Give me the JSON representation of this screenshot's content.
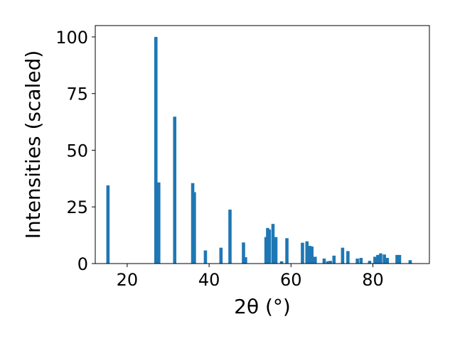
{
  "chart_data": {
    "type": "bar",
    "xlabel": "2θ (°)",
    "ylabel": "Intensities (scaled)",
    "xlim": [
      12.2,
      93.8
    ],
    "ylim": [
      0,
      105
    ],
    "xticks": [
      20,
      40,
      60,
      80
    ],
    "yticks": [
      0,
      25,
      50,
      75,
      100
    ],
    "bar_color": "#1f77b4",
    "grid": false,
    "legend": "none",
    "peaks": [
      {
        "x": 15.3,
        "y": 34.5
      },
      {
        "x": 27.0,
        "y": 100.0
      },
      {
        "x": 27.7,
        "y": 35.8
      },
      {
        "x": 31.6,
        "y": 64.8
      },
      {
        "x": 36.0,
        "y": 35.5
      },
      {
        "x": 36.4,
        "y": 31.5
      },
      {
        "x": 39.1,
        "y": 5.8
      },
      {
        "x": 42.9,
        "y": 7.0
      },
      {
        "x": 45.1,
        "y": 23.8
      },
      {
        "x": 48.4,
        "y": 9.3
      },
      {
        "x": 48.9,
        "y": 2.8
      },
      {
        "x": 53.9,
        "y": 11.7
      },
      {
        "x": 54.3,
        "y": 15.7
      },
      {
        "x": 54.7,
        "y": 15.0
      },
      {
        "x": 55.6,
        "y": 17.5
      },
      {
        "x": 56.3,
        "y": 11.7
      },
      {
        "x": 57.7,
        "y": 1.0
      },
      {
        "x": 59.0,
        "y": 11.2
      },
      {
        "x": 62.8,
        "y": 9.2
      },
      {
        "x": 63.9,
        "y": 9.8
      },
      {
        "x": 64.6,
        "y": 7.8
      },
      {
        "x": 65.1,
        "y": 7.5
      },
      {
        "x": 65.9,
        "y": 3.0
      },
      {
        "x": 68.1,
        "y": 2.2
      },
      {
        "x": 69.0,
        "y": 1.0
      },
      {
        "x": 69.6,
        "y": 1.2
      },
      {
        "x": 70.5,
        "y": 3.5
      },
      {
        "x": 72.6,
        "y": 7.0
      },
      {
        "x": 73.9,
        "y": 5.5
      },
      {
        "x": 76.2,
        "y": 2.2
      },
      {
        "x": 77.1,
        "y": 2.5
      },
      {
        "x": 79.2,
        "y": 1.2
      },
      {
        "x": 80.5,
        "y": 3.0
      },
      {
        "x": 81.2,
        "y": 3.8
      },
      {
        "x": 81.9,
        "y": 4.5
      },
      {
        "x": 82.8,
        "y": 4.0
      },
      {
        "x": 83.5,
        "y": 2.5
      },
      {
        "x": 85.9,
        "y": 3.8
      },
      {
        "x": 86.5,
        "y": 3.8
      },
      {
        "x": 89.1,
        "y": 1.5
      }
    ]
  }
}
